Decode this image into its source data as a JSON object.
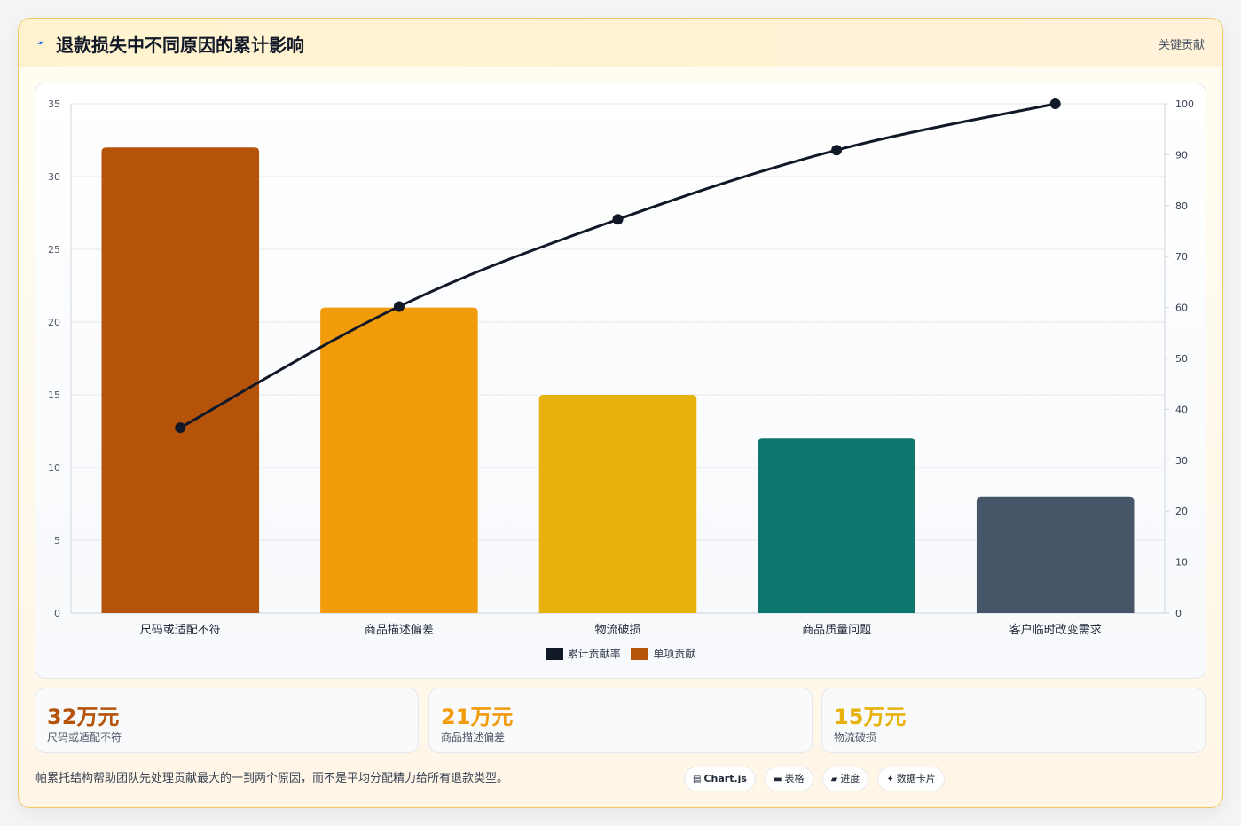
{
  "header": {
    "title": "退款损失中不同原因的累计影响",
    "tag": "关键贡献"
  },
  "chart_data": {
    "type": "bar",
    "categories": [
      "尺码或适配不符",
      "商品描述偏差",
      "物流破损",
      "商品质量问题",
      "客户临时改变需求"
    ],
    "series": [
      {
        "name": "单项贡献",
        "type": "bar",
        "axis": "left",
        "values": [
          32,
          21,
          15,
          12,
          8
        ],
        "colors": [
          "#b45309",
          "#f29c0c",
          "#e8b20c",
          "#0f766e",
          "#475569"
        ]
      },
      {
        "name": "累计贡献率",
        "type": "line",
        "axis": "right",
        "values": [
          36.4,
          60.2,
          77.3,
          90.9,
          100
        ],
        "color": "#111827"
      }
    ],
    "ylim": [
      0,
      35
    ],
    "y_ticks": [
      0,
      5,
      10,
      15,
      20,
      25,
      30,
      35
    ],
    "y2lim": [
      0,
      100
    ],
    "y2_ticks": [
      0,
      10,
      20,
      30,
      40,
      50,
      60,
      70,
      80,
      90,
      100
    ],
    "grid": true,
    "legend_position": "bottom",
    "legend": [
      {
        "label": "累计贡献率",
        "color": "#111827"
      },
      {
        "label": "单项贡献",
        "color": "#b45309"
      }
    ]
  },
  "stats": [
    {
      "value": "32万元",
      "label": "尺码或适配不符",
      "color": "#b45309"
    },
    {
      "value": "21万元",
      "label": "商品描述偏差",
      "color": "#f29c0c"
    },
    {
      "value": "15万元",
      "label": "物流破损",
      "color": "#e8b20c"
    }
  ],
  "footnote": "帕累托结构帮助团队先处理贡献最大的一到两个原因，而不是平均分配精力给所有退款类型。",
  "pills": [
    {
      "icon": "chart-icon",
      "glyph": "▤",
      "label": "Chart.js"
    },
    {
      "icon": "table-icon",
      "glyph": "▬",
      "label": "表格"
    },
    {
      "icon": "progress-icon",
      "glyph": "▰",
      "label": "进度"
    },
    {
      "icon": "card-icon",
      "glyph": "✦",
      "label": "数据卡片"
    }
  ]
}
